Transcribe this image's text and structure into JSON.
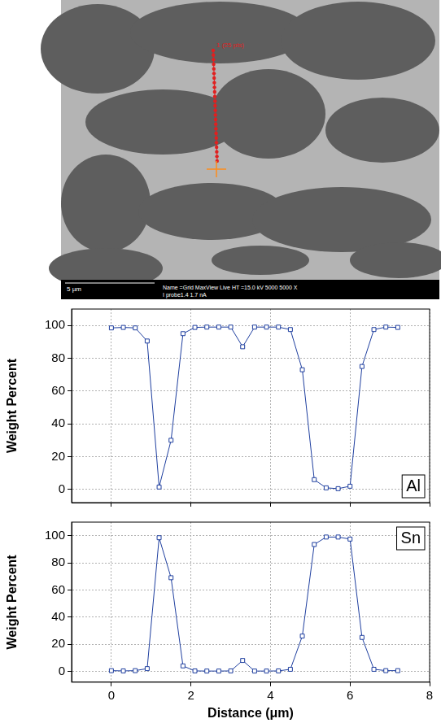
{
  "micrograph": {
    "line_label": "1 (25 pts)",
    "scale_bar": "5 µm",
    "info": [
      "Name =Grid MaxView Live  HT =15.0 kV  5000 5000 X",
      "I probe1.4 1.7 nA"
    ]
  },
  "chart_data": [
    {
      "type": "line",
      "y_label": "Weight Percent",
      "x": [
        0,
        0.3,
        0.6,
        0.9,
        1.2,
        1.5,
        1.8,
        2.1,
        2.4,
        2.7,
        3.0,
        3.3,
        3.6,
        3.9,
        4.2,
        4.5,
        4.8,
        5.1,
        5.4,
        5.7,
        6.0,
        6.3,
        6.6,
        6.9,
        7.2
      ],
      "series": [
        {
          "name": "Al",
          "color": "#1f3f9f",
          "marker": "square",
          "values": [
            98.5,
            98.8,
            98.5,
            90.5,
            1.5,
            30,
            95,
            98.8,
            99,
            99,
            99,
            87,
            99,
            99,
            99,
            97.5,
            73,
            6,
            1,
            0.5,
            2,
            75,
            97.5,
            99,
            98.8
          ]
        }
      ],
      "xlim": [
        -1,
        8
      ],
      "xticks": [
        0,
        2,
        4,
        6,
        8
      ],
      "ylim": [
        -8,
        110
      ],
      "yticks": [
        0,
        20,
        40,
        60,
        80,
        100
      ],
      "grid": true,
      "legend": "lower right",
      "tick_labels": "y"
    },
    {
      "type": "line",
      "y_label": "Weight Percent",
      "x_label": "Distance (μm)",
      "x": [
        0,
        0.3,
        0.6,
        0.9,
        1.2,
        1.5,
        1.8,
        2.1,
        2.4,
        2.7,
        3.0,
        3.3,
        3.6,
        3.9,
        4.2,
        4.5,
        4.8,
        5.1,
        5.4,
        5.7,
        6.0,
        6.3,
        6.6,
        6.9,
        7.2
      ],
      "series": [
        {
          "name": "Sn",
          "color": "#1f3f9f",
          "marker": "square",
          "values": [
            0.5,
            0.3,
            0.5,
            2,
            98.5,
            69,
            4,
            0.3,
            0.2,
            0.2,
            0.3,
            8,
            0.2,
            0.2,
            0.3,
            1.5,
            26,
            93.5,
            99,
            99,
            97.5,
            25,
            1.5,
            0.5,
            0.5
          ]
        }
      ],
      "xlim": [
        -1,
        8
      ],
      "xticks": [
        0,
        2,
        4,
        6,
        8
      ],
      "ylim": [
        -8,
        110
      ],
      "yticks": [
        0,
        20,
        40,
        60,
        80,
        100
      ],
      "grid": true,
      "legend": "upper right"
    }
  ]
}
